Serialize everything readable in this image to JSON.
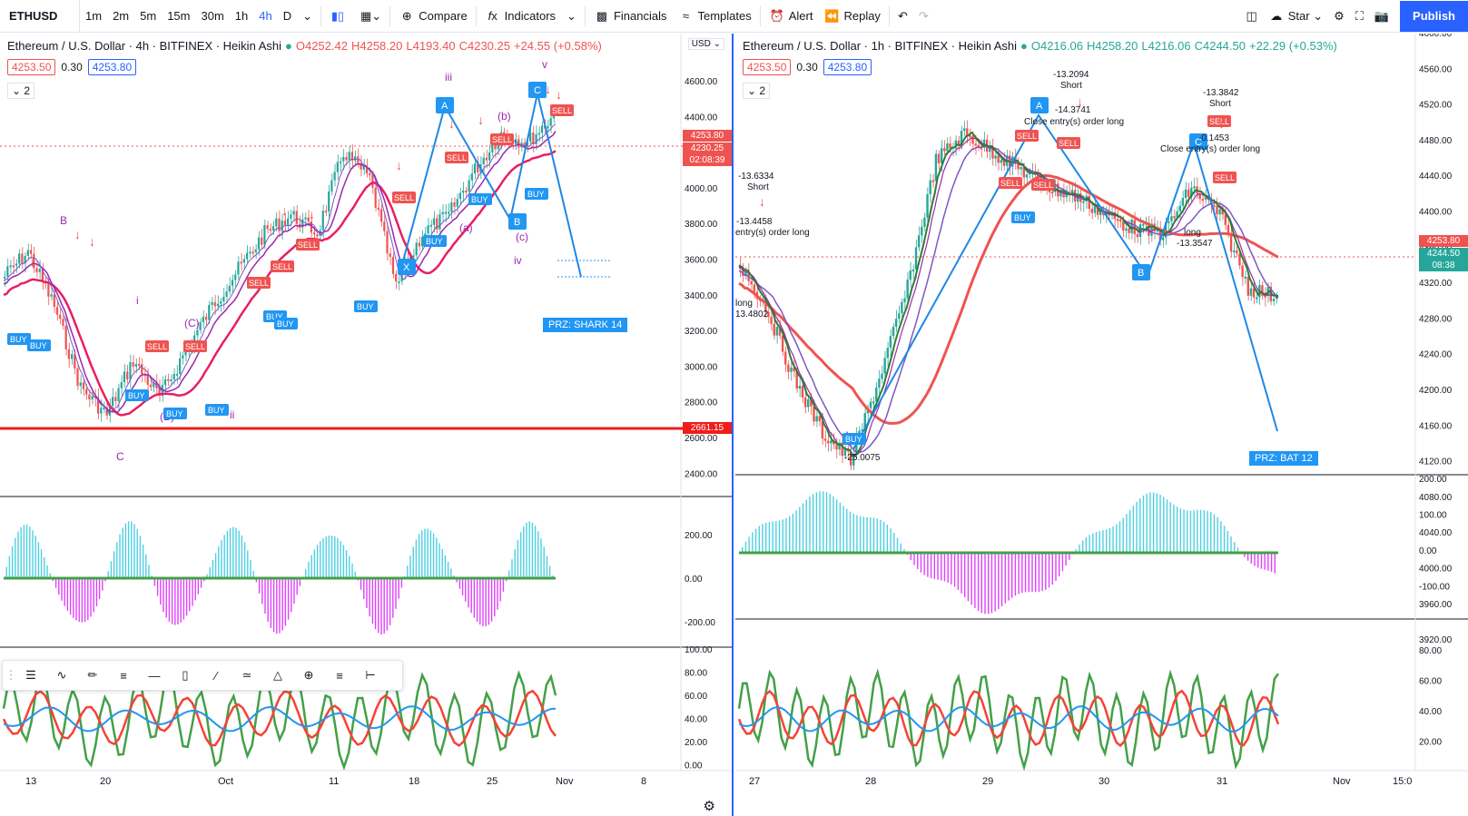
{
  "toolbar": {
    "symbol": "ETHUSD",
    "timeframes": [
      "1m",
      "2m",
      "5m",
      "15m",
      "30m",
      "1h",
      "4h",
      "D"
    ],
    "active_tf": "4h",
    "compare": "Compare",
    "indicators": "Indicators",
    "financials": "Financials",
    "templates": "Templates",
    "alert": "Alert",
    "replay": "Replay",
    "layout_name": "Star",
    "publish": "Publish"
  },
  "left": {
    "title": "Ethereum / U.S. Dollar · 4h · BITFINEX · Heikin Ashi",
    "ohlc": {
      "o": "4252.42",
      "h": "4258.20",
      "l": "4193.40",
      "c": "4230.25",
      "chg": "+24.55 (+0.58%)"
    },
    "bid": "4253.50",
    "spread": "0.30",
    "ask": "4253.80",
    "layers": "2",
    "currency": "USD",
    "price_ticks": [
      "4600.00",
      "4400.00",
      "4200.00",
      "4000.00",
      "3800.00",
      "3600.00",
      "3400.00",
      "3200.00",
      "3000.00",
      "2800.00",
      "2600.00",
      "2400.00"
    ],
    "tags": {
      "ask": "4253.80",
      "last": "4230.25",
      "countdown": "02:08:39",
      "support": "2661.15"
    },
    "osc1_ticks": [
      "200.00",
      "0.00",
      "-200.00"
    ],
    "osc2_ticks": [
      "100.00",
      "80.00",
      "60.00",
      "40.00",
      "20.00",
      "0.00"
    ],
    "time_ticks": [
      "13",
      "20",
      "Oct",
      "11",
      "18",
      "25",
      "Nov",
      "8"
    ],
    "prz": "PRZ: SHARK 14",
    "points": [
      "A",
      "B",
      "C",
      "X"
    ],
    "waves": [
      "iii",
      "v",
      "(b)",
      "(a)",
      "(c)",
      "iv",
      "i",
      "ii",
      "B",
      "(B)",
      "(C)",
      "C"
    ],
    "buy": "BUY",
    "sell": "SELL"
  },
  "right": {
    "title": "Ethereum / U.S. Dollar · 1h · BITFINEX · Heikin Ashi",
    "ohlc": {
      "o": "4216.06",
      "h": "4258.20",
      "l": "4216.06",
      "c": "4244.50",
      "chg": "+22.29 (+0.53%)"
    },
    "bid": "4253.50",
    "spread": "0.30",
    "ask": "4253.80",
    "layers": "2",
    "price_ticks": [
      "4600.00",
      "4560.00",
      "4520.00",
      "4480.00",
      "4440.00",
      "4400.00",
      "4360.00",
      "4320.00",
      "4280.00",
      "4240.00",
      "4200.00",
      "4160.00",
      "4120.00",
      "4080.00",
      "4040.00",
      "4000.00",
      "3960.00",
      "3920.00"
    ],
    "tags": {
      "ask": "4253.80",
      "last": "4244.50",
      "countdown": "08:38"
    },
    "osc1_ticks": [
      "200.00",
      "100.00",
      "0.00",
      "-100.00"
    ],
    "osc2_ticks": [
      "80.00",
      "60.00",
      "40.00",
      "20.00"
    ],
    "time_ticks": [
      "27",
      "28",
      "29",
      "30",
      "31",
      "Nov",
      "15:0"
    ],
    "prz": "PRZ: BAT 12",
    "annotations": [
      "-13.6334",
      "Short",
      "-13.4458",
      "entry(s) order long",
      "-13.2094",
      "Short",
      "-14.3741",
      "Close entry(s) order long",
      "-13.3842",
      "Short",
      "-0.1453",
      "Close entry(s) order long",
      "long",
      "-13.3547",
      "long",
      "-25.0075",
      "long",
      "13.4802"
    ],
    "points": [
      "A",
      "B",
      "C"
    ]
  }
}
